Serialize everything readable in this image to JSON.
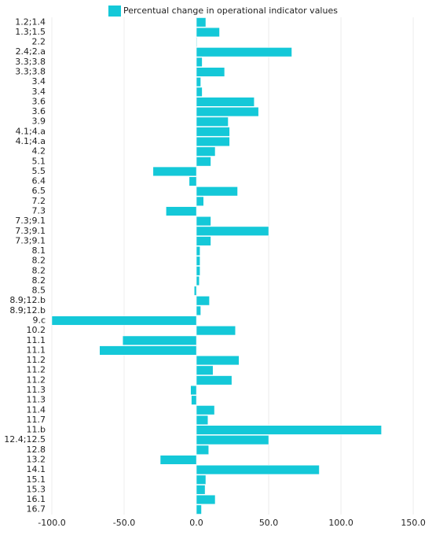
{
  "chart_data": {
    "type": "barh",
    "series": [
      {
        "name": "Percentual change in operational indicator values",
        "color": "#14c8d8",
        "values": [
          6.5,
          16,
          0.3,
          66,
          4,
          19.5,
          3,
          4,
          40,
          43,
          22,
          23,
          23,
          13,
          10,
          -30,
          -5,
          28.5,
          5,
          -21,
          10,
          50,
          10,
          2.5,
          2.5,
          2.5,
          2,
          -1.5,
          9,
          3,
          -100,
          27,
          -51,
          -67,
          29.5,
          11.5,
          24.5,
          -4,
          -3.5,
          12.5,
          8,
          128,
          50,
          8.5,
          -25,
          85,
          6.5,
          6,
          13,
          3.5
        ]
      }
    ],
    "categories": [
      "1.2;1.4",
      "1.3;1.5",
      "2.2",
      "2.4;2.a",
      "3.3;3.8",
      "3.3;3.8",
      "3.4",
      "3.4",
      "3.6",
      "3.6",
      "3.9",
      "4.1;4.a",
      "4.1;4.a",
      "4.2",
      "5.1",
      "5.5",
      "6.4",
      "6.5",
      "7.2",
      "7.3",
      "7.3;9.1",
      "7.3;9.1",
      "7.3;9.1",
      "8.1",
      "8.2",
      "8.2",
      "8.2",
      "8.5",
      "8.9;12.b",
      "8.9;12.b",
      "9.c",
      "10.2",
      "11.1",
      "11.1",
      "11.2",
      "11.2",
      "11.2",
      "11.3",
      "11.3",
      "11.4",
      "11.7",
      "11.b",
      "12.4;12.5",
      "12.8",
      "13.2",
      "14.1",
      "15.1",
      "15.3",
      "16.1",
      "16.7"
    ],
    "xlim": [
      -100,
      157
    ],
    "xticks": [
      {
        "value": -100,
        "label": "-100.0"
      },
      {
        "value": -50,
        "label": "-50.0"
      },
      {
        "value": 0,
        "label": "0.0"
      },
      {
        "value": 50,
        "label": "50.0"
      },
      {
        "value": 100,
        "label": "100.0"
      },
      {
        "value": 150,
        "label": "150.0"
      }
    ],
    "grid": true,
    "legend": "top"
  }
}
